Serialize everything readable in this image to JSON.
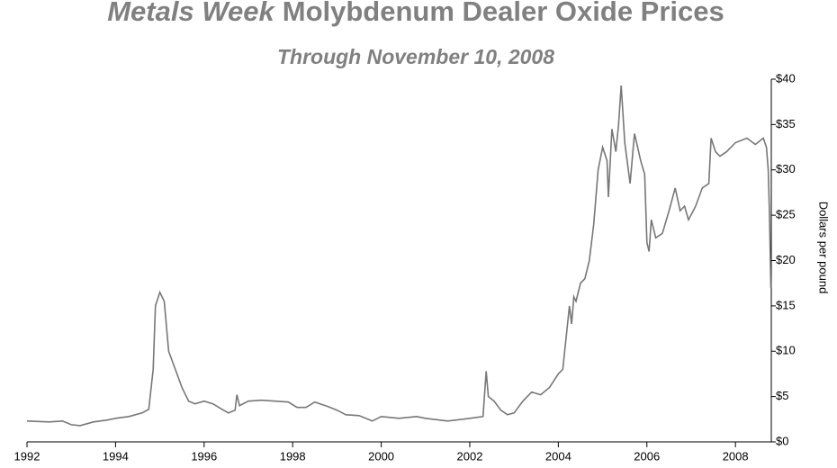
{
  "chart_data": {
    "type": "line",
    "title": [
      "Metals Week",
      "Molybdenum Dealer Oxide Prices"
    ],
    "subtitle": "Through November 10, 2008",
    "y_label": "Dollars per pound",
    "xlim": [
      1992,
      2008.81
    ],
    "ylim": [
      0,
      40
    ],
    "xticks": [
      1992,
      1994,
      1996,
      1998,
      2000,
      2002,
      2004,
      2006,
      2008
    ],
    "yticks": [
      {
        "value": 0,
        "label": "$0"
      },
      {
        "value": 5,
        "label": "$5"
      },
      {
        "value": 10,
        "label": "$10"
      },
      {
        "value": 15,
        "label": "$15"
      },
      {
        "value": 20,
        "label": "$20"
      },
      {
        "value": 25,
        "label": "$25"
      },
      {
        "value": 30,
        "label": "$30"
      },
      {
        "value": 35,
        "label": "$35"
      },
      {
        "value": 40,
        "label": "$40"
      }
    ],
    "color": "#777777",
    "x": [
      1992.0,
      1992.5,
      1992.8,
      1993.0,
      1993.2,
      1993.5,
      1993.8,
      1994.0,
      1994.3,
      1994.6,
      1994.75,
      1994.85,
      1994.9,
      1995.0,
      1995.1,
      1995.2,
      1995.35,
      1995.5,
      1995.65,
      1995.8,
      1996.0,
      1996.2,
      1996.4,
      1996.55,
      1996.7,
      1996.74,
      1996.8,
      1997.0,
      1997.3,
      1997.6,
      1997.9,
      1998.1,
      1998.3,
      1998.5,
      1998.8,
      1999.0,
      1999.2,
      1999.5,
      1999.8,
      2000.0,
      2000.4,
      2000.8,
      2001.0,
      2001.5,
      2002.0,
      2002.3,
      2002.37,
      2002.42,
      2002.55,
      2002.7,
      2002.85,
      2003.0,
      2003.2,
      2003.4,
      2003.6,
      2003.8,
      2004.0,
      2004.1,
      2004.25,
      2004.3,
      2004.35,
      2004.4,
      2004.5,
      2004.6,
      2004.7,
      2004.8,
      2004.9,
      2005.0,
      2005.1,
      2005.13,
      2005.21,
      2005.3,
      2005.36,
      2005.42,
      2005.5,
      2005.62,
      2005.72,
      2005.86,
      2005.95,
      2006.0,
      2006.05,
      2006.1,
      2006.2,
      2006.35,
      2006.5,
      2006.64,
      2006.75,
      2006.85,
      2006.94,
      2007.1,
      2007.25,
      2007.4,
      2007.45,
      2007.55,
      2007.65,
      2007.8,
      2008.0,
      2008.26,
      2008.45,
      2008.63,
      2008.7,
      2008.74,
      2008.77,
      2008.8
    ],
    "values": [
      2.3,
      2.2,
      2.3,
      1.9,
      1.8,
      2.2,
      2.4,
      2.6,
      2.8,
      3.2,
      3.6,
      8.0,
      15.0,
      16.5,
      15.5,
      10.0,
      8.0,
      6.0,
      4.5,
      4.2,
      4.5,
      4.2,
      3.6,
      3.2,
      3.5,
      5.2,
      4.0,
      4.5,
      4.6,
      4.5,
      4.4,
      3.8,
      3.8,
      4.4,
      3.9,
      3.5,
      3.0,
      2.9,
      2.3,
      2.8,
      2.6,
      2.8,
      2.6,
      2.3,
      2.6,
      2.8,
      7.8,
      5.0,
      4.5,
      3.5,
      3.0,
      3.2,
      4.5,
      5.5,
      5.2,
      6.0,
      7.5,
      8.0,
      15.0,
      13.0,
      16.0,
      15.5,
      17.5,
      18.0,
      20.0,
      24.0,
      30.0,
      32.5,
      31.0,
      27.0,
      34.5,
      32.0,
      35.0,
      39.3,
      33.0,
      28.5,
      34.0,
      31.0,
      29.5,
      22.0,
      21.0,
      24.5,
      22.5,
      23.0,
      25.5,
      28.0,
      25.5,
      26.0,
      24.5,
      26.0,
      28.0,
      28.5,
      33.5,
      32.0,
      31.5,
      32.0,
      33.0,
      33.5,
      32.8,
      33.5,
      32.5,
      30.0,
      25.0,
      17.0
    ]
  }
}
